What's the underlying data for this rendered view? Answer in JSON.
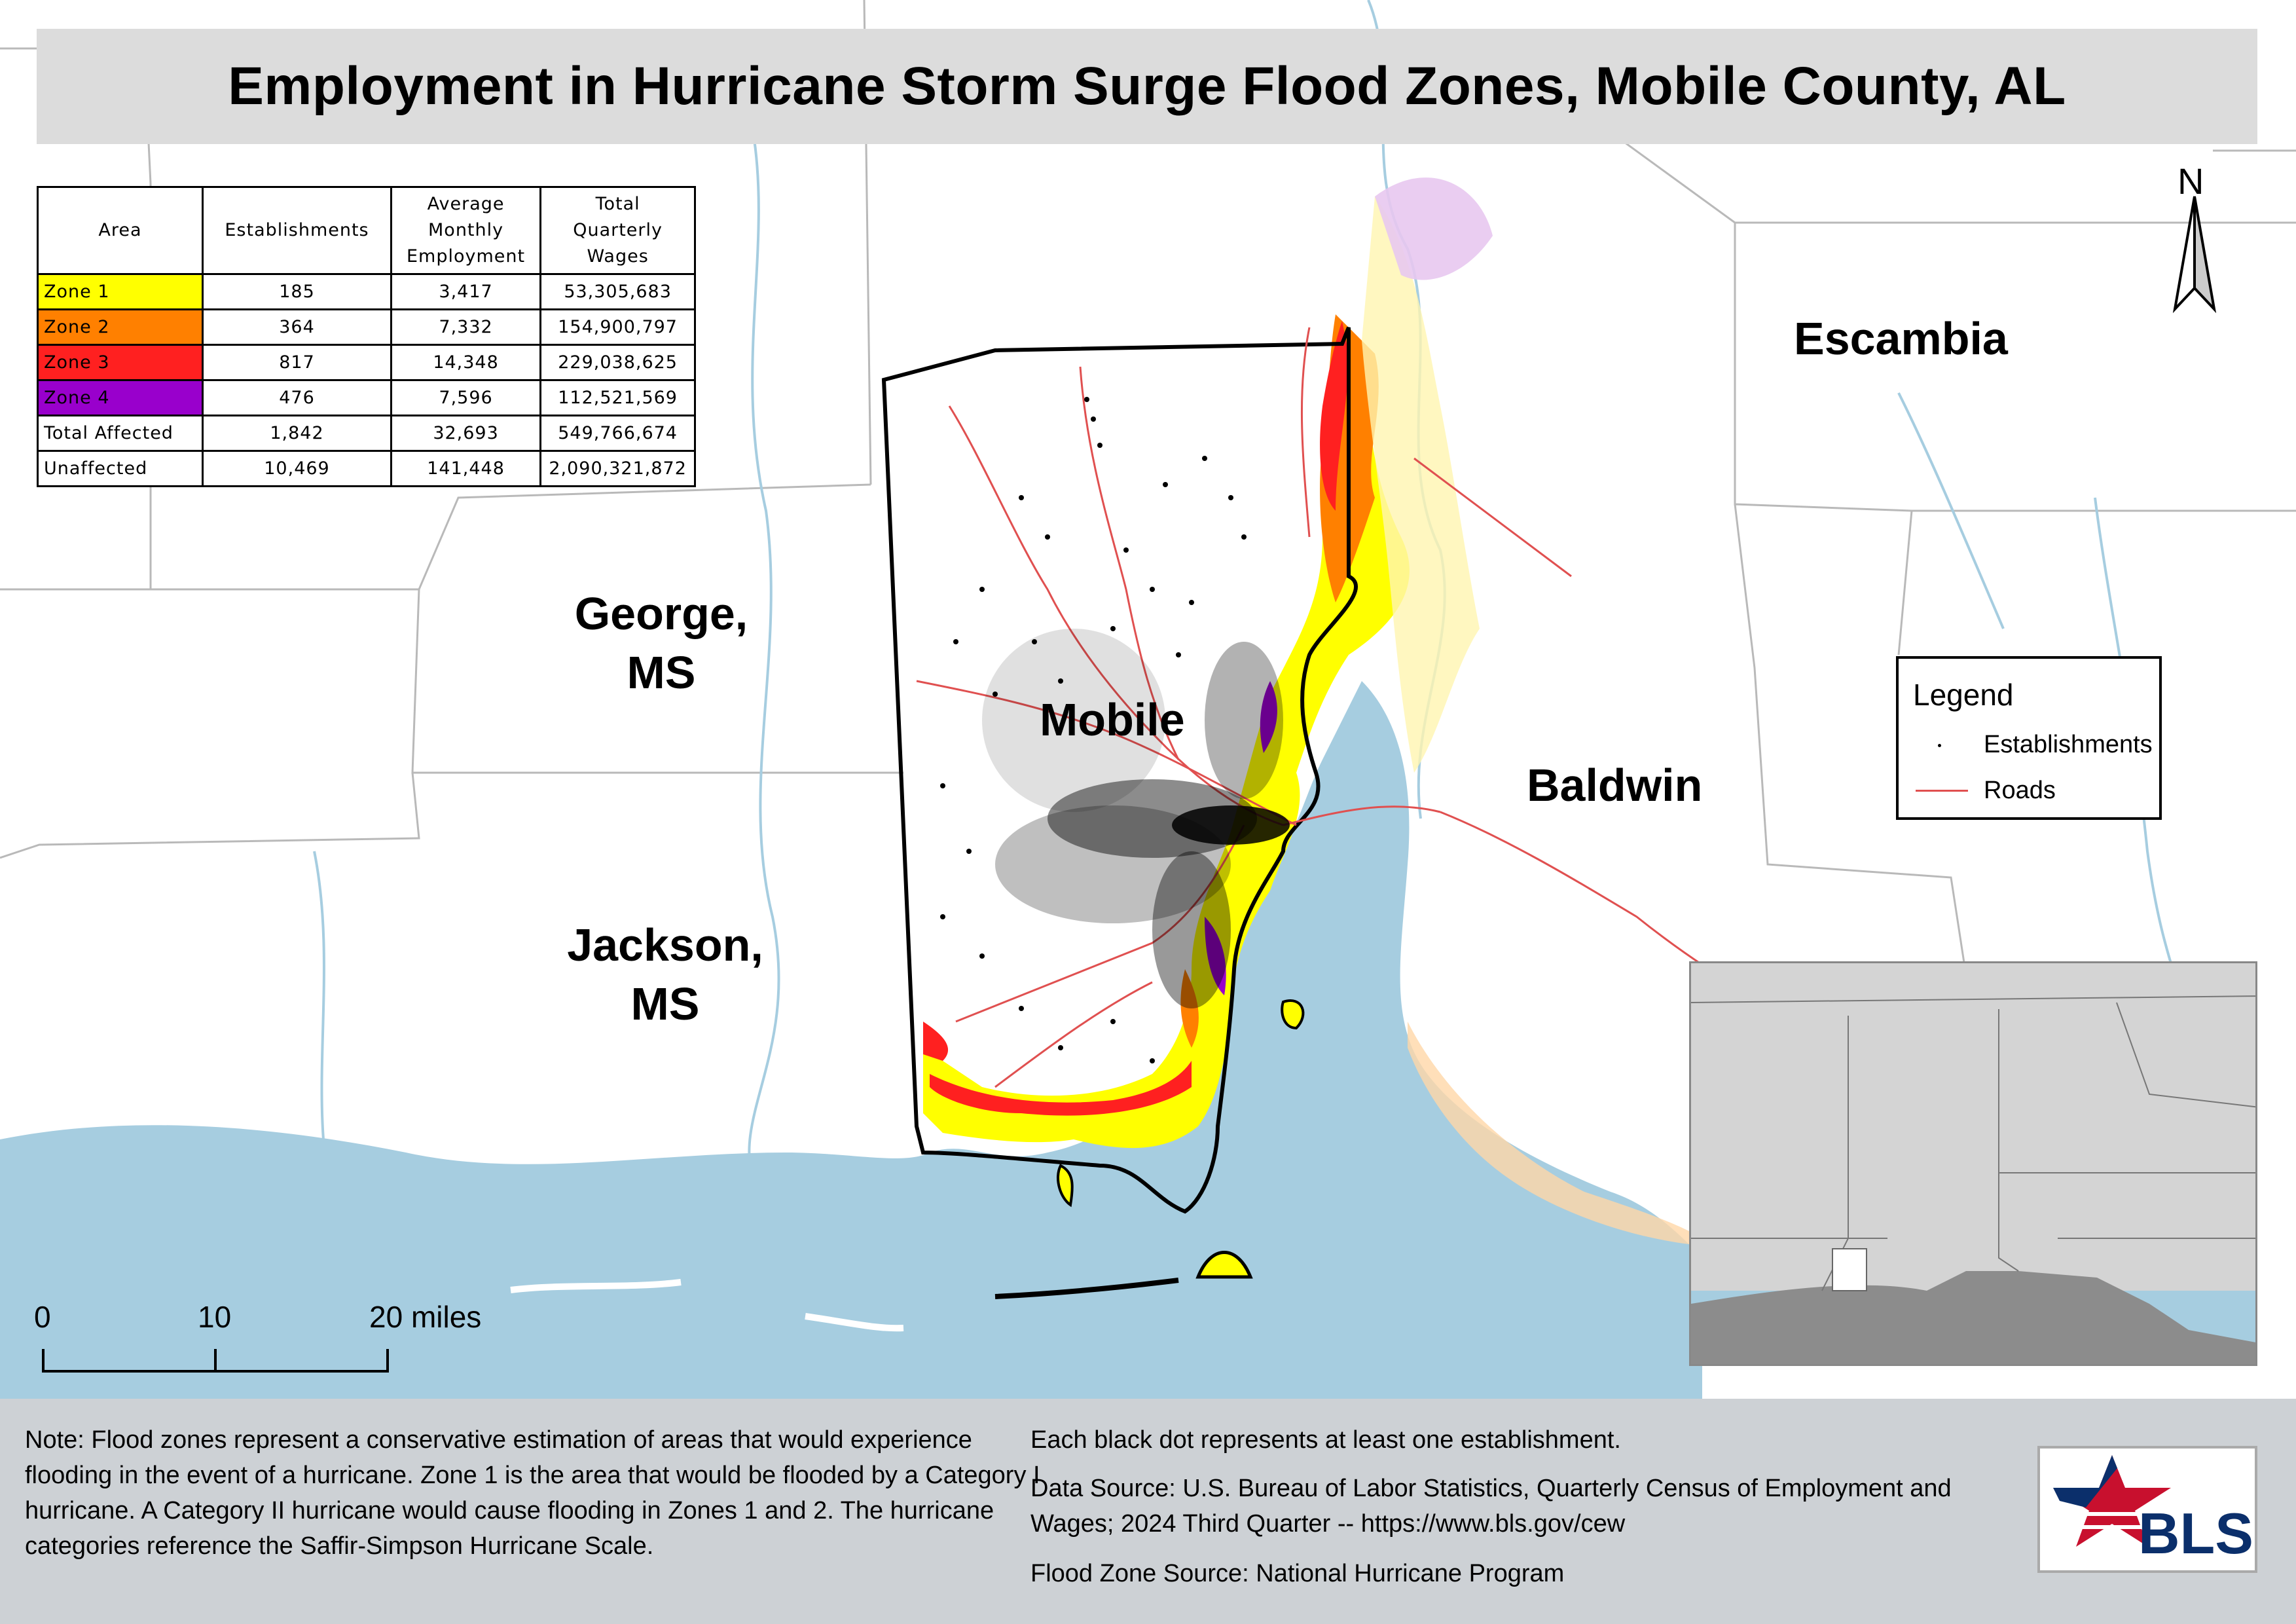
{
  "title": "Employment in Hurricane Storm Surge Flood Zones, Mobile County, AL",
  "table": {
    "headers": [
      "Area",
      "Establishments",
      "Average Monthly Employment",
      "Total Quarterly Wages"
    ],
    "rows": [
      {
        "area": "Zone 1",
        "establishments": "185",
        "employment": "3,417",
        "wages": "53,305,683",
        "color": "#ffff00"
      },
      {
        "area": "Zone 2",
        "establishments": "364",
        "employment": "7,332",
        "wages": "154,900,797",
        "color": "#ff8000"
      },
      {
        "area": "Zone 3",
        "establishments": "817",
        "employment": "14,348",
        "wages": "229,038,625",
        "color": "#ff2020"
      },
      {
        "area": "Zone 4",
        "establishments": "476",
        "employment": "7,596",
        "wages": "112,521,569",
        "color": "#9900cc"
      },
      {
        "area": "Total Affected",
        "establishments": "1,842",
        "employment": "32,693",
        "wages": "549,766,674",
        "color": "#ffffff"
      },
      {
        "area": "Unaffected",
        "establishments": "10,469",
        "employment": "141,448",
        "wages": "2,090,321,872",
        "color": "#ffffff"
      }
    ]
  },
  "labels": {
    "escambia": "Escambia",
    "george": "George,",
    "george_state": "MS",
    "mobile": "Mobile",
    "baldwin": "Baldwin",
    "jackson": "Jackson,",
    "jackson_state": "MS"
  },
  "north_arrow": {
    "letter": "N",
    "icon": "north-arrow-icon"
  },
  "legend": {
    "title": "Legend",
    "items": [
      {
        "label": "Establishments",
        "symbol": "dot"
      },
      {
        "label": "Roads",
        "symbol": "line"
      }
    ]
  },
  "scale_bar": {
    "ticks": [
      "0",
      "10",
      "20 miles"
    ]
  },
  "footer": {
    "note": "Note: Flood zones represent a conservative estimation of areas that would experience flooding in the event of a hurricane. Zone 1 is the area that would be flooded by a Category I hurricane. A Category II hurricane would cause flooding in Zones 1 and 2. The hurricane categories reference the Saffir-Simpson Hurricane Scale.",
    "dot_note": "Each black dot represents at least one establishment.",
    "data_source": "Data Source: U.S. Bureau of Labor Statistics, Quarterly Census of Employment and Wages; 2024 Third Quarter -- https://www.bls.gov/cew",
    "flood_source": "Flood Zone Source: National Hurricane Program"
  },
  "logo": {
    "text": "BLS"
  },
  "colors": {
    "water": "#a6cde0",
    "zone1": "#ffff00",
    "zone2": "#ff8000",
    "zone3": "#ff2020",
    "zone4": "#9900cc",
    "roads": "#e05050",
    "footer_bg": "#cdd1d5"
  }
}
